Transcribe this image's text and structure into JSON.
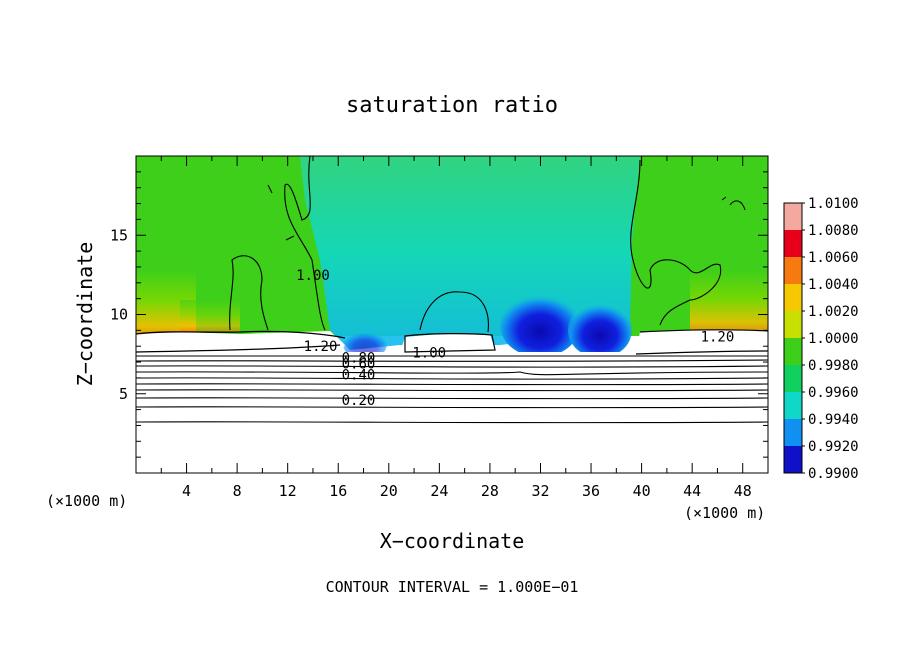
{
  "chart_data": {
    "type": "heatmap",
    "title": "saturation ratio",
    "xlabel": "X−coordinate",
    "ylabel": "Z−coordinate",
    "x_unit_left": "(×1000 m)",
    "x_unit_right": "(×1000 m)",
    "xlim": [
      0,
      50
    ],
    "ylim": [
      0,
      20
    ],
    "x_ticks": [
      4,
      8,
      12,
      16,
      20,
      24,
      28,
      32,
      36,
      40,
      44,
      48
    ],
    "y_ticks": [
      5,
      10,
      15
    ],
    "colorbar": {
      "labels": [
        "1.0100",
        "1.0080",
        "1.0060",
        "1.0040",
        "1.0020",
        "1.0000",
        "0.9980",
        "0.9960",
        "0.9940",
        "0.9920",
        "0.9900"
      ],
      "levels": [
        1.01,
        1.008,
        1.006,
        1.004,
        1.002,
        1.0,
        0.998,
        0.996,
        0.994,
        0.992,
        0.99
      ],
      "colors": [
        "#f4a9a0",
        "#e8001a",
        "#f57a10",
        "#f5c800",
        "#c8e000",
        "#3ecf1a",
        "#10d060",
        "#10d8c8",
        "#1090f0",
        "#1010c8",
        "#6a0898"
      ]
    },
    "contour_labels": [
      {
        "text": "1.20",
        "x": 14.6,
        "z": 8.0
      },
      {
        "text": "1.20",
        "x": 46.0,
        "z": 8.6
      },
      {
        "text": "1.00",
        "x": 14.0,
        "z": 12.5
      },
      {
        "text": "1.00",
        "x": 23.2,
        "z": 7.6
      },
      {
        "text": "0.80",
        "x": 17.6,
        "z": 7.3
      },
      {
        "text": "0.60",
        "x": 17.6,
        "z": 6.9
      },
      {
        "text": "0.40",
        "x": 17.6,
        "z": 6.2
      },
      {
        "text": "0.20",
        "x": 17.6,
        "z": 4.6
      }
    ],
    "footnote": "CONTOUR INTERVAL = 1.000E−01"
  }
}
